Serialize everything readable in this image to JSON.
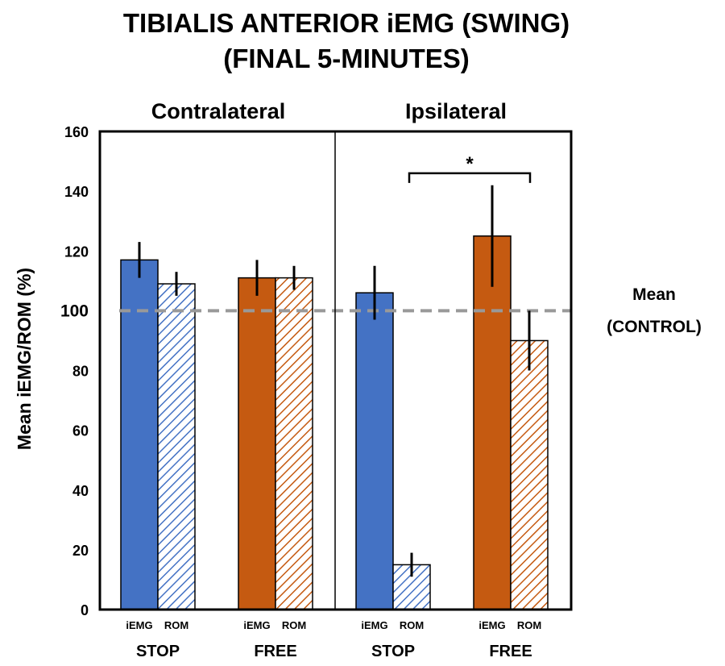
{
  "chart_data": {
    "type": "bar",
    "title_lines": [
      "TIBIALIS ANTERIOR iEMG (SWING)",
      "(FINAL 5-MINUTES)"
    ],
    "ylabel": "Mean iEMG/ROM (%)",
    "ylim": [
      0,
      160
    ],
    "yticks": [
      0,
      20,
      40,
      60,
      80,
      100,
      120,
      140,
      160
    ],
    "panels": [
      {
        "name": "Contralateral",
        "groups": [
          {
            "name": "STOP",
            "color": "#4472C4",
            "bars": [
              {
                "label": "iEMG",
                "value": 117,
                "err": 6,
                "hatched": false
              },
              {
                "label": "ROM",
                "value": 109,
                "err": 4,
                "hatched": true
              }
            ]
          },
          {
            "name": "FREE",
            "color": "#C55A11",
            "bars": [
              {
                "label": "iEMG",
                "value": 111,
                "err": 6,
                "hatched": false
              },
              {
                "label": "ROM",
                "value": 111,
                "err": 4,
                "hatched": true
              }
            ]
          }
        ]
      },
      {
        "name": "Ipsilateral",
        "groups": [
          {
            "name": "STOP",
            "color": "#4472C4",
            "bars": [
              {
                "label": "iEMG",
                "value": 106,
                "err": 9,
                "hatched": false
              },
              {
                "label": "ROM",
                "value": 15,
                "err": 4,
                "hatched": true
              }
            ]
          },
          {
            "name": "FREE",
            "color": "#C55A11",
            "bars": [
              {
                "label": "iEMG",
                "value": 125,
                "err": 17,
                "hatched": false
              },
              {
                "label": "ROM",
                "value": 90,
                "err": 10,
                "hatched": true
              }
            ]
          }
        ]
      }
    ],
    "reference_line": {
      "value": 100,
      "label_lines": [
        "Mean",
        "(CONTROL)"
      ],
      "color": "#999999",
      "style": "dashed"
    },
    "significance": {
      "panel": 1,
      "from_group": 0,
      "to_group": 1,
      "marker": "*",
      "at_value": 146
    }
  }
}
